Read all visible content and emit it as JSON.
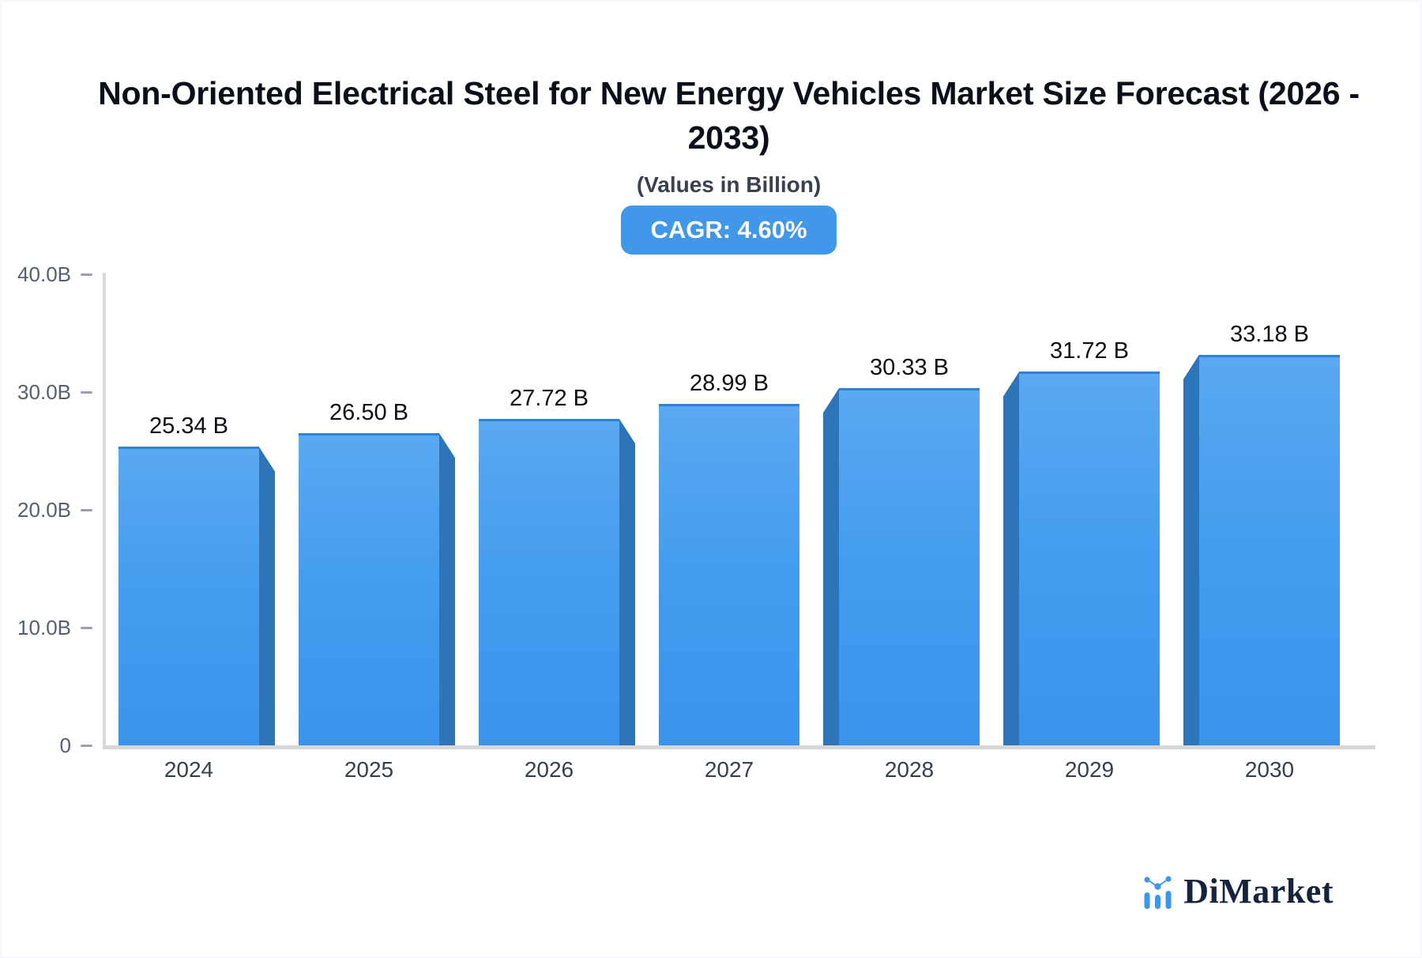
{
  "header": {
    "title_line1": "Non-Oriented Electrical Steel for New Energy Vehicles Market Size Forecast (2026 -",
    "title_line2": "2033)",
    "subtitle": "(Values in Billion)",
    "cagr_badge": "CAGR: 4.60%"
  },
  "chart_data": {
    "type": "bar",
    "title": "Non-Oriented Electrical Steel for New Energy Vehicles Market Size Forecast (2026 - 2033)",
    "subtitle": "(Values in Billion)",
    "cagr_percent": 4.6,
    "categories": [
      "2024",
      "2025",
      "2026",
      "2027",
      "2028",
      "2029",
      "2030"
    ],
    "values": [
      25.34,
      26.5,
      27.72,
      28.99,
      30.33,
      31.72,
      33.18
    ],
    "value_labels": [
      "25.34 B",
      "26.50 B",
      "27.72 B",
      "28.99 B",
      "30.33 B",
      "31.72 B",
      "33.18 B"
    ],
    "unit": "Billion",
    "ylim": [
      0,
      40
    ],
    "ytick_values": [
      0,
      10,
      20,
      30,
      40
    ],
    "ytick_labels": [
      "0",
      "10.0B",
      "20.0B",
      "30.0B",
      "40.0B"
    ],
    "grid": false,
    "legend": "none",
    "bar_style": "3d-perspective-center-vanishing"
  },
  "colors": {
    "bar_face_top": "#5aa9f1",
    "bar_face_bottom": "#3b94ec",
    "bar_side": "#2d74b8",
    "badge_bg": "#4197ea",
    "badge_text": "#ffffff",
    "axis_line": "#d7dae0",
    "tick": "#9aa1ae",
    "logo_blue": "#3d96ee",
    "logo_navy": "#16233c"
  },
  "branding": {
    "logo_text": "DiMarket",
    "logo_icon": "bar-chart-with-dots-icon"
  }
}
